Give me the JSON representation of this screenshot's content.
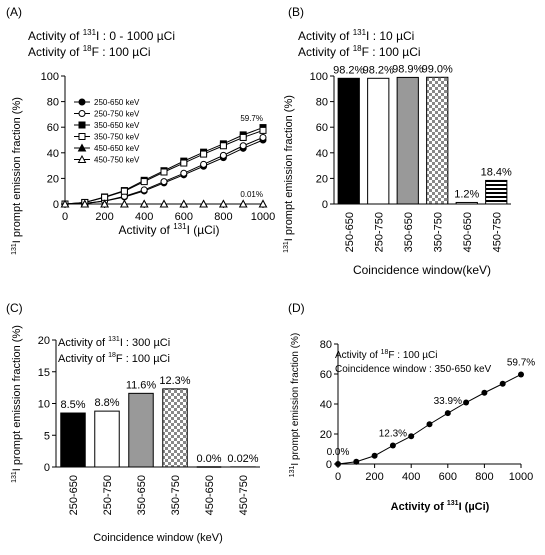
{
  "chart_data": [
    {
      "panel_label": "(A)",
      "type": "line",
      "header_lines": [
        {
          "a": "Activity of ",
          "sup": "131",
          "b": "I : 0 - 1000 µCi"
        },
        {
          "a": "Activity of ",
          "sup": "18",
          "b": "F : 100 µCi"
        }
      ],
      "ylabel": {
        "sup": "131",
        "text": "I prompt emission  fraction (%)"
      },
      "xlabel": {
        "a": "Activity of ",
        "sup": "131",
        "b": "I (µCi)"
      },
      "xlim": [
        0,
        1000
      ],
      "ylim": [
        0,
        100
      ],
      "xticks": [
        0,
        200,
        400,
        600,
        800,
        1000
      ],
      "yticks": [
        0,
        20,
        40,
        60,
        80,
        100
      ],
      "x": [
        0,
        100,
        200,
        300,
        400,
        500,
        600,
        700,
        800,
        900,
        1000
      ],
      "legend_position": "top-left",
      "series": [
        {
          "name": "250-650 keV",
          "marker": "circle-filled",
          "values": [
            0,
            0.4,
            2.2,
            5.5,
            10.2,
            16.5,
            22.8,
            29.5,
            36.2,
            43.5,
            50
          ]
        },
        {
          "name": "250-750 keV",
          "marker": "circle-open",
          "values": [
            0,
            0.4,
            2.4,
            6,
            11,
            17.5,
            24,
            31,
            38,
            45.5,
            52
          ]
        },
        {
          "name": "350-650 keV",
          "marker": "square-filled",
          "values": [
            0,
            1.2,
            5.5,
            10.5,
            18.5,
            26,
            33.5,
            40.5,
            47,
            54,
            59.7
          ]
        },
        {
          "name": "350-750 keV",
          "marker": "square-open",
          "values": [
            0,
            1.2,
            5.2,
            10,
            17.5,
            25,
            32,
            39,
            45.5,
            52,
            57.5
          ]
        },
        {
          "name": "450-650 keV",
          "marker": "triangle-filled",
          "values": [
            0,
            0,
            0,
            0,
            0,
            0,
            0,
            0,
            0,
            0,
            0.01
          ]
        },
        {
          "name": "450-750 keV",
          "marker": "triangle-open",
          "values": [
            0,
            0,
            0,
            0,
            0,
            0,
            0,
            0,
            0,
            0,
            0
          ]
        }
      ],
      "annotations": [
        "59.7%",
        "0.01%"
      ]
    },
    {
      "panel_label": "(B)",
      "type": "bar",
      "header_lines": [
        {
          "a": "Activity of ",
          "sup": "131",
          "b": "I  : 10 µCi"
        },
        {
          "a": "Activity of ",
          "sup": "18",
          "b": "F  : 100 µCi"
        }
      ],
      "ylabel": {
        "sup": "131",
        "text": "I prompt emission fraction (%)"
      },
      "xlabel": "Coincidence window(keV)",
      "ylim": [
        0,
        100
      ],
      "yticks": [
        0,
        20,
        40,
        60,
        80,
        100
      ],
      "categories": [
        "250-650",
        "250-750",
        "350-650",
        "350-750",
        "450-650",
        "450-750"
      ],
      "values": [
        98.2,
        98.2,
        98.9,
        99.0,
        1.2,
        18.4
      ],
      "data_labels": [
        "98.2%",
        "98.2%",
        "98.9%",
        "99.0%",
        "1.2%",
        "18.4%"
      ],
      "fills": [
        "black",
        "white",
        "gray",
        "checker",
        "hlines",
        "hlines"
      ]
    },
    {
      "panel_label": "(C)",
      "type": "bar",
      "header_lines": [
        {
          "a": "Activity of ",
          "sup": "131",
          "b": "I : 300 µCi"
        },
        {
          "a": "Activity of ",
          "sup": "18",
          "b": "F  : 100 µCi"
        }
      ],
      "ylabel": {
        "sup": "131",
        "text": "I prompt emission  fraction (%)"
      },
      "xlabel": "Coincidence window  (keV)",
      "ylim": [
        0,
        20
      ],
      "yticks": [
        0,
        5,
        10,
        15,
        20
      ],
      "categories": [
        "250-650",
        "250-750",
        "350-650",
        "350-750",
        "450-650",
        "450-750"
      ],
      "values": [
        8.5,
        8.8,
        11.6,
        12.3,
        0.0,
        0.02
      ],
      "data_labels": [
        "8.5%",
        "8.8%",
        "11.6%",
        "12.3%",
        "0.0%",
        "0.02%"
      ],
      "fills": [
        "black",
        "white",
        "gray",
        "checker",
        "hlines",
        "hlines"
      ]
    },
    {
      "panel_label": "(D)",
      "type": "line",
      "header_lines": [
        {
          "a": "Activity of ",
          "sup": "18",
          "b": "F : 100 µCi"
        },
        {
          "a": "Coincidence window : 350-650 keV",
          "sup": "",
          "b": ""
        }
      ],
      "ylabel": {
        "sup": "131",
        "text": "I prompt emission  fraction (%)"
      },
      "xlabel": {
        "a": "Activity of ",
        "sup": "131",
        "b": "I  (µCi)"
      },
      "xlim": [
        0,
        1000
      ],
      "ylim": [
        0,
        80
      ],
      "xticks": [
        0,
        200,
        400,
        600,
        800,
        1000
      ],
      "yticks": [
        0,
        20,
        40,
        60,
        80
      ],
      "x": [
        0,
        100,
        200,
        300,
        400,
        500,
        600,
        700,
        800,
        900,
        1000
      ],
      "series": [
        {
          "values": [
            0,
            1.5,
            5.5,
            12.3,
            18.5,
            26.5,
            33.9,
            41,
            47.5,
            53.5,
            59.7
          ]
        }
      ],
      "annotations": [
        {
          "text": "0.0%",
          "at": 0
        },
        {
          "text": "12.3%",
          "at": 3
        },
        {
          "text": "33.9%",
          "at": 6
        },
        {
          "text": "59.7%",
          "at": 10
        }
      ]
    }
  ]
}
